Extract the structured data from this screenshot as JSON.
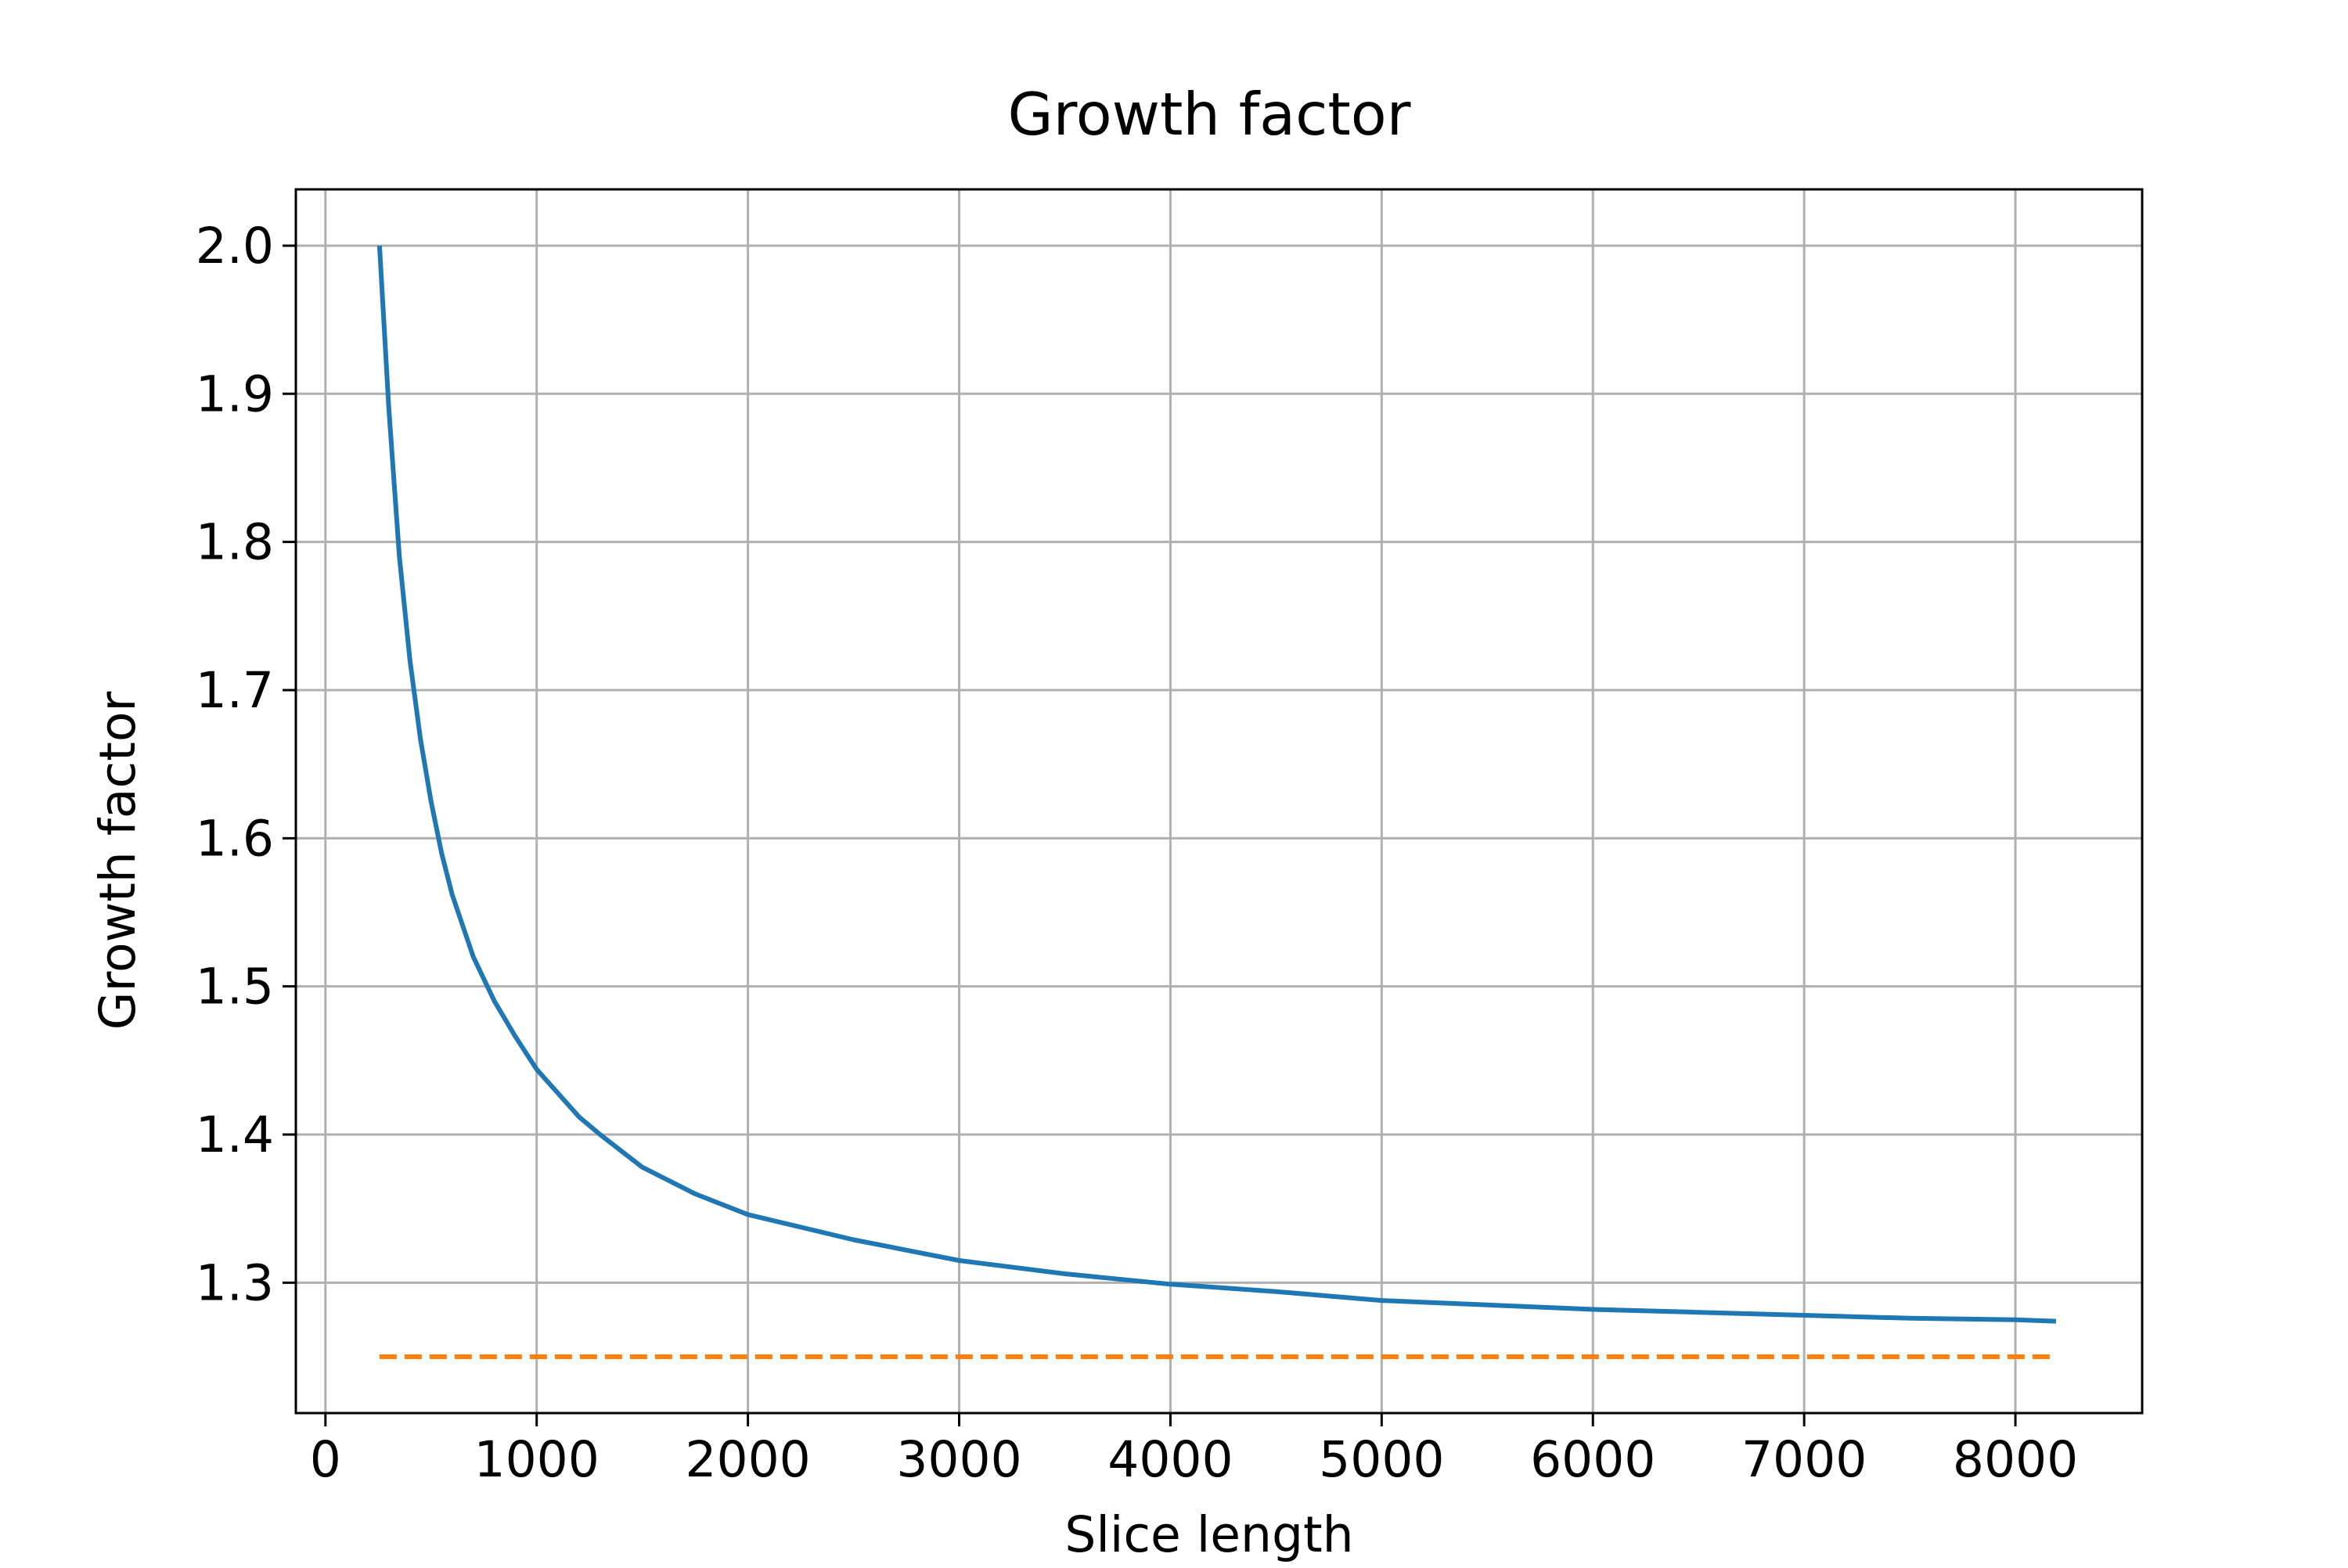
{
  "chart_data": {
    "type": "line",
    "title": "Growth factor",
    "xlabel": "Slice length",
    "ylabel": "Growth factor",
    "xlim": [
      -140,
      8600
    ],
    "ylim": [
      1.212,
      2.038
    ],
    "x_ticks": [
      0,
      1000,
      2000,
      3000,
      4000,
      5000,
      6000,
      7000,
      8000
    ],
    "x_tick_labels": [
      "0",
      "1000",
      "2000",
      "3000",
      "4000",
      "5000",
      "6000",
      "7000",
      "8000"
    ],
    "y_ticks": [
      1.3,
      1.4,
      1.5,
      1.6,
      1.7,
      1.8,
      1.9,
      2.0
    ],
    "y_tick_labels": [
      "1.3",
      "1.4",
      "1.5",
      "1.6",
      "1.7",
      "1.8",
      "1.9",
      "2.0"
    ],
    "grid": true,
    "legend": "none",
    "series": [
      {
        "color": "#1f77b4",
        "style": "solid",
        "x": [
          256,
          300,
          350,
          400,
          450,
          500,
          550,
          600,
          700,
          800,
          900,
          1000,
          1200,
          1300,
          1500,
          1750,
          2000,
          2500,
          3000,
          3500,
          4000,
          4500,
          5000,
          5500,
          6000,
          6500,
          7000,
          7500,
          8000,
          8192
        ],
        "y": [
          2.0,
          1.89,
          1.79,
          1.72,
          1.667,
          1.625,
          1.59,
          1.562,
          1.52,
          1.49,
          1.466,
          1.444,
          1.412,
          1.4,
          1.378,
          1.36,
          1.346,
          1.329,
          1.315,
          1.306,
          1.299,
          1.294,
          1.288,
          1.285,
          1.282,
          1.28,
          1.278,
          1.276,
          1.275,
          1.274
        ]
      },
      {
        "color": "#ff7f0e",
        "style": "dashed",
        "x": [
          256,
          8192
        ],
        "y": [
          1.25,
          1.25
        ]
      }
    ]
  }
}
